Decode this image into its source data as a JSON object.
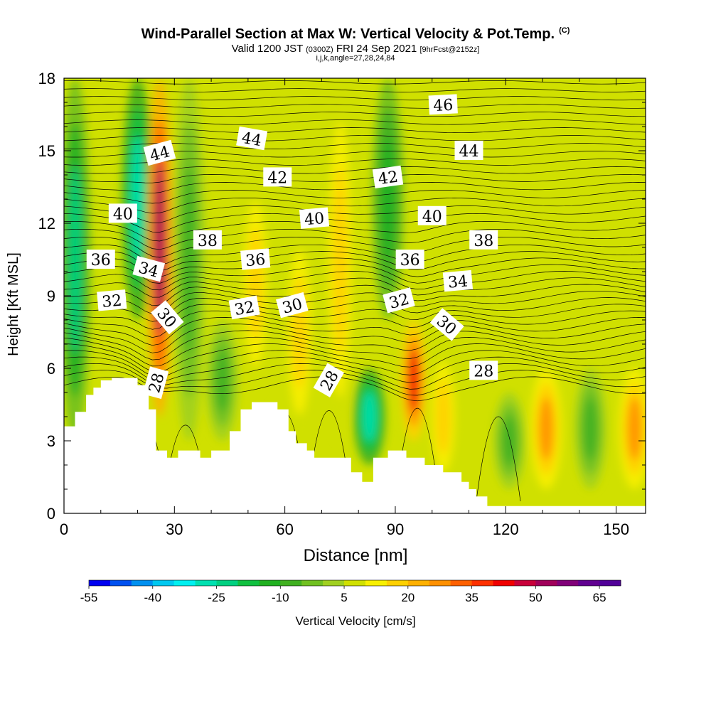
{
  "chart_data": {
    "type": "heatmap",
    "title": "Wind-Parallel Section at Max W: Vertical Velocity & Pot.Temp.",
    "title_mark": "(C)",
    "subtitle_parts": [
      "Valid 1200 JST",
      "(0300Z)",
      "FRI 24 Sep 2021",
      "[9hrFcst@2152z]"
    ],
    "subtitle2": "i,j,k,angle=27,28,24,84",
    "xlabel": "Distance [nm]",
    "ylabel": "Height [Kft MSL]",
    "xlim": [
      0,
      158
    ],
    "ylim": [
      0,
      18
    ],
    "x_ticks": [
      "0",
      "30",
      "60",
      "90",
      "120",
      "150"
    ],
    "x_tick_values": [
      0,
      30,
      60,
      90,
      120,
      150
    ],
    "y_ticks": [
      "0",
      "3",
      "6",
      "9",
      "12",
      "15",
      "18"
    ],
    "y_tick_values": [
      0,
      3,
      6,
      9,
      12,
      15,
      18
    ],
    "colorbar": {
      "label": "Vertical Velocity [cm/s]",
      "min": -55,
      "max": 70,
      "step": 5,
      "tick_labels": [
        "-55",
        "-40",
        "-25",
        "-10",
        "5",
        "20",
        "35",
        "50",
        "65"
      ],
      "tick_values": [
        -55,
        -40,
        -25,
        -10,
        5,
        20,
        35,
        50,
        65
      ],
      "colors": [
        "#0000f0",
        "#0050f0",
        "#0090f0",
        "#00c8f0",
        "#00f0f0",
        "#00e0b0",
        "#00d080",
        "#10c040",
        "#20b020",
        "#40b020",
        "#70c020",
        "#a0d020",
        "#d0e000",
        "#f8f000",
        "#ffd000",
        "#ffb000",
        "#ff9000",
        "#ff6000",
        "#ff3000",
        "#f00000",
        "#c8003a",
        "#a0005a",
        "#800078",
        "#600090",
        "#500098"
      ]
    },
    "theta_contours_K": [
      {
        "value": 28,
        "label_count": 3
      },
      {
        "value": 30,
        "label_count": 3
      },
      {
        "value": 32,
        "label_count": 3
      },
      {
        "value": 34,
        "label_count": 2
      },
      {
        "value": 36,
        "label_count": 3
      },
      {
        "value": 38,
        "label_count": 2
      },
      {
        "value": 40,
        "label_count": 3
      },
      {
        "value": 42,
        "label_count": 2
      },
      {
        "value": 44,
        "label_count": 3
      },
      {
        "value": 46,
        "label_count": 1
      }
    ],
    "vertical_velocity_features": [
      {
        "x": 3,
        "z_range": [
          3,
          18
        ],
        "w": -25
      },
      {
        "x": 20,
        "z_range": [
          8,
          18
        ],
        "w": -30
      },
      {
        "x": 26,
        "z_range": [
          4,
          18
        ],
        "w": 50
      },
      {
        "x": 34,
        "z_range": [
          3,
          18
        ],
        "w": -10
      },
      {
        "x": 43,
        "z_range": [
          3,
          8
        ],
        "w": -10
      },
      {
        "x": 52,
        "z_range": [
          5,
          14
        ],
        "w": 15
      },
      {
        "x": 64,
        "z_range": [
          3,
          12
        ],
        "w": 15
      },
      {
        "x": 75,
        "z_range": [
          3,
          18
        ],
        "w": 15
      },
      {
        "x": 83,
        "z_range": [
          2,
          6
        ],
        "w": -30
      },
      {
        "x": 88,
        "z_range": [
          8,
          18
        ],
        "w": -15
      },
      {
        "x": 95,
        "z_range": [
          3,
          8
        ],
        "w": 40
      },
      {
        "x": 103,
        "z_range": [
          1,
          7
        ],
        "w": 15
      },
      {
        "x": 121,
        "z_range": [
          1,
          5
        ],
        "w": -10
      },
      {
        "x": 131,
        "z_range": [
          1,
          6
        ],
        "w": 25
      },
      {
        "x": 143,
        "z_range": [
          1,
          6
        ],
        "w": -10
      },
      {
        "x": 155,
        "z_range": [
          1,
          6
        ],
        "w": 25
      }
    ],
    "terrain_kft": [
      [
        0,
        3.6
      ],
      [
        3,
        3.6
      ],
      [
        3,
        4.2
      ],
      [
        6,
        4.2
      ],
      [
        6,
        4.9
      ],
      [
        8,
        4.9
      ],
      [
        8,
        5.2
      ],
      [
        10,
        5.2
      ],
      [
        10,
        5.5
      ],
      [
        13,
        5.5
      ],
      [
        13,
        5.6
      ],
      [
        20,
        5.6
      ],
      [
        20,
        5.3
      ],
      [
        23,
        5.3
      ],
      [
        23,
        4.3
      ],
      [
        25,
        4.3
      ],
      [
        25,
        2.6
      ],
      [
        28,
        2.6
      ],
      [
        28,
        2.3
      ],
      [
        31,
        2.3
      ],
      [
        31,
        2.6
      ],
      [
        37,
        2.6
      ],
      [
        37,
        2.3
      ],
      [
        40,
        2.3
      ],
      [
        40,
        2.6
      ],
      [
        45,
        2.6
      ],
      [
        45,
        3.4
      ],
      [
        48,
        3.4
      ],
      [
        48,
        4.3
      ],
      [
        51,
        4.3
      ],
      [
        51,
        4.6
      ],
      [
        58,
        4.6
      ],
      [
        58,
        4.3
      ],
      [
        61,
        4.3
      ],
      [
        61,
        3.4
      ],
      [
        63,
        3.4
      ],
      [
        63,
        2.9
      ],
      [
        66,
        2.9
      ],
      [
        66,
        2.6
      ],
      [
        68,
        2.6
      ],
      [
        68,
        2.3
      ],
      [
        78,
        2.3
      ],
      [
        78,
        1.7
      ],
      [
        81,
        1.7
      ],
      [
        81,
        1.3
      ],
      [
        84,
        1.3
      ],
      [
        84,
        2.3
      ],
      [
        88,
        2.3
      ],
      [
        88,
        2.6
      ],
      [
        93,
        2.6
      ],
      [
        93,
        2.3
      ],
      [
        98,
        2.3
      ],
      [
        98,
        2.0
      ],
      [
        103,
        2.0
      ],
      [
        103,
        1.7
      ],
      [
        108,
        1.7
      ],
      [
        108,
        1.3
      ],
      [
        110,
        1.3
      ],
      [
        110,
        1.0
      ],
      [
        112,
        1.0
      ],
      [
        112,
        0.7
      ],
      [
        115,
        0.7
      ],
      [
        115,
        0.3
      ],
      [
        158,
        0.3
      ]
    ],
    "contour_labels": [
      {
        "text": "46",
        "x": 103,
        "z": 16.9,
        "rot": -3
      },
      {
        "text": "44",
        "x": 26,
        "z": 14.9,
        "rot": -15
      },
      {
        "text": "44",
        "x": 51,
        "z": 15.5,
        "rot": 10
      },
      {
        "text": "44",
        "x": 110,
        "z": 15.0,
        "rot": 0
      },
      {
        "text": "42",
        "x": 58,
        "z": 13.9,
        "rot": 0
      },
      {
        "text": "42",
        "x": 88,
        "z": 13.9,
        "rot": -8
      },
      {
        "text": "40",
        "x": 16,
        "z": 12.4,
        "rot": 0
      },
      {
        "text": "40",
        "x": 68,
        "z": 12.2,
        "rot": -5
      },
      {
        "text": "40",
        "x": 100,
        "z": 12.3,
        "rot": 0
      },
      {
        "text": "38",
        "x": 39,
        "z": 11.3,
        "rot": 0
      },
      {
        "text": "38",
        "x": 114,
        "z": 11.3,
        "rot": 0
      },
      {
        "text": "36",
        "x": 10,
        "z": 10.5,
        "rot": 0
      },
      {
        "text": "36",
        "x": 52,
        "z": 10.5,
        "rot": -5
      },
      {
        "text": "36",
        "x": 94,
        "z": 10.5,
        "rot": 0
      },
      {
        "text": "34",
        "x": 23,
        "z": 10.1,
        "rot": 15
      },
      {
        "text": "34",
        "x": 107,
        "z": 9.6,
        "rot": -5
      },
      {
        "text": "32",
        "x": 13,
        "z": 8.8,
        "rot": -5
      },
      {
        "text": "32",
        "x": 49,
        "z": 8.5,
        "rot": -10
      },
      {
        "text": "32",
        "x": 91,
        "z": 8.8,
        "rot": -15
      },
      {
        "text": "30",
        "x": 28,
        "z": 8.1,
        "rot": 50
      },
      {
        "text": "30",
        "x": 62,
        "z": 8.6,
        "rot": -15
      },
      {
        "text": "30",
        "x": 104,
        "z": 7.8,
        "rot": 40
      },
      {
        "text": "28",
        "x": 25,
        "z": 5.4,
        "rot": -75
      },
      {
        "text": "28",
        "x": 72,
        "z": 5.5,
        "rot": -60
      },
      {
        "text": "28",
        "x": 114,
        "z": 5.9,
        "rot": 0
      }
    ]
  }
}
